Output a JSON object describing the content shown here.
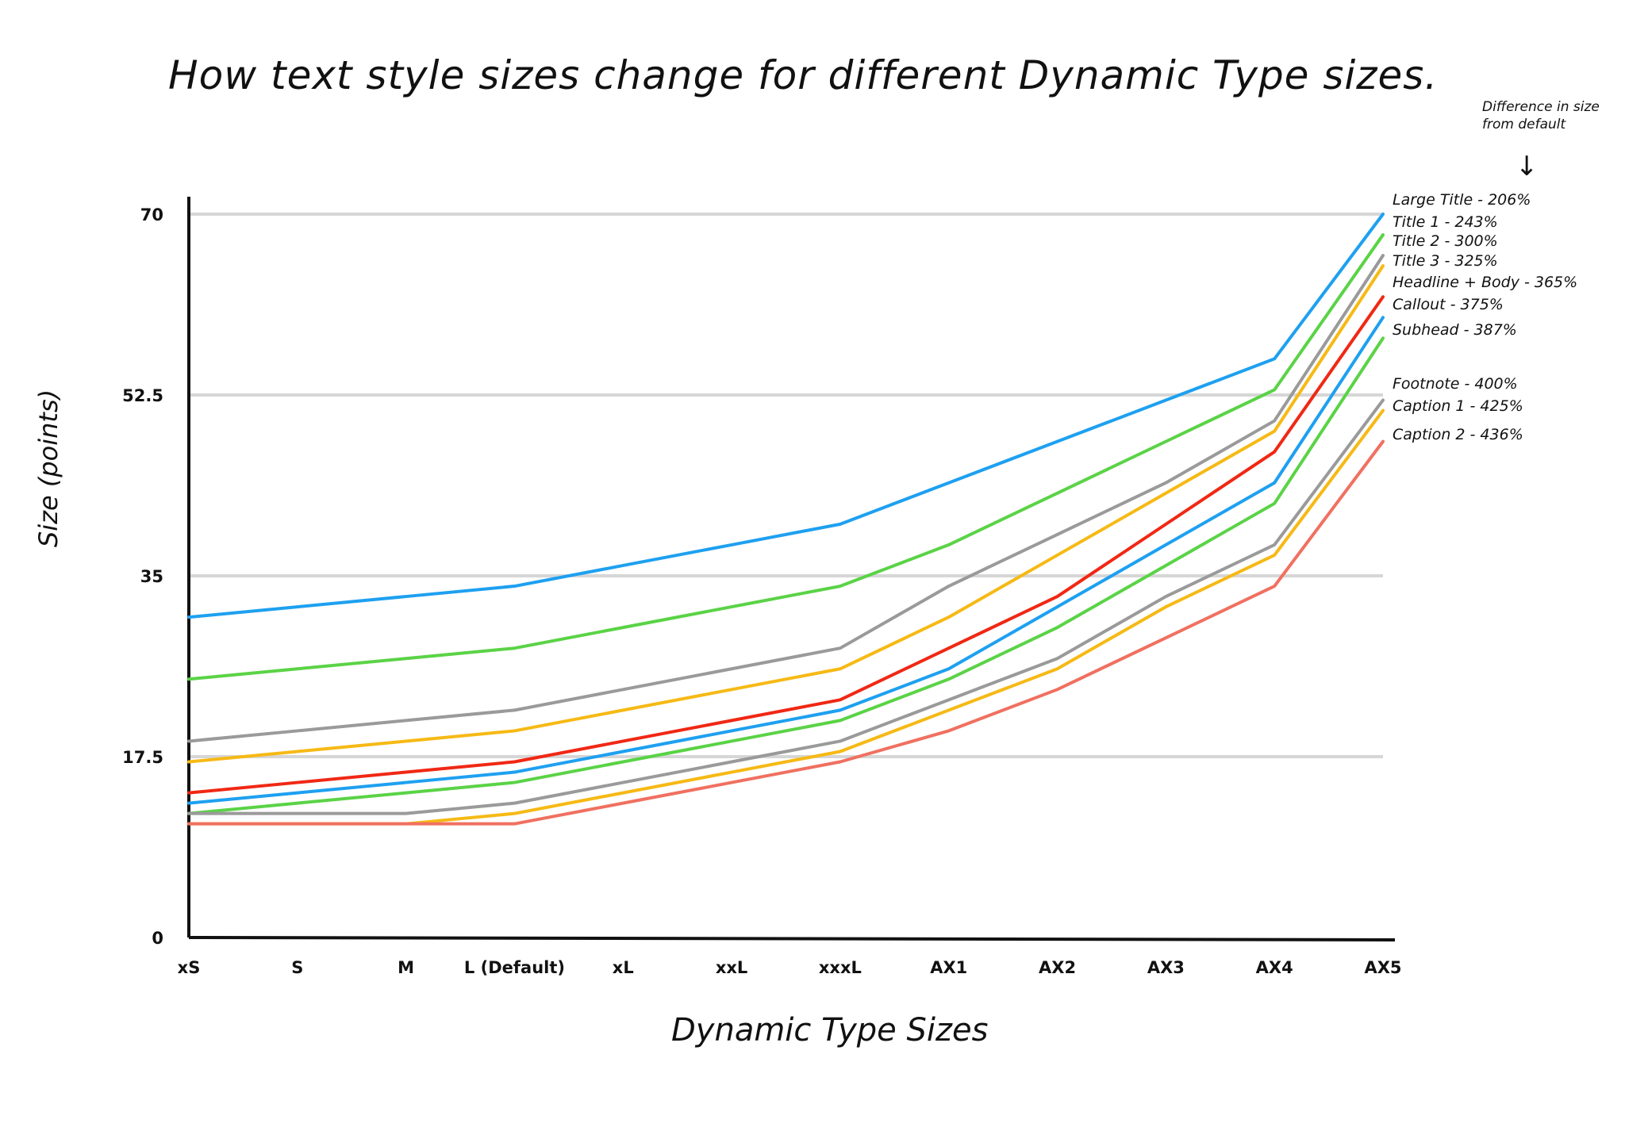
{
  "chart_data": {
    "type": "line",
    "title": "How text style sizes change for different Dynamic Type sizes.",
    "xlabel": "Dynamic Type Sizes",
    "ylabel": "Size (points)",
    "ylim": [
      0,
      70
    ],
    "yticks": [
      "0",
      "17.5",
      "35",
      "52.5",
      "70"
    ],
    "categories": [
      "xS",
      "S",
      "M",
      "L (Default)",
      "xL",
      "xxL",
      "xxxL",
      "AX1",
      "AX2",
      "AX3",
      "AX4",
      "AX5"
    ],
    "grid": true,
    "legend_note": "Difference in size from default",
    "legend_placement": "right",
    "series": [
      {
        "name": "Large Title",
        "label": "Large Title - 206%",
        "color": "#1ea0f0",
        "values": [
          31,
          32,
          33,
          34,
          36,
          38,
          40,
          44,
          48,
          52,
          56,
          70
        ]
      },
      {
        "name": "Title 1",
        "label": "Title 1 - 243%",
        "color": "#5ad346",
        "values": [
          25,
          26,
          27,
          28,
          30,
          32,
          34,
          38,
          43,
          48,
          53,
          68
        ]
      },
      {
        "name": "Title 2",
        "label": "Title 2 - 300%",
        "color": "#9a9a9a",
        "values": [
          19,
          20,
          21,
          22,
          24,
          26,
          28,
          34,
          39,
          44,
          50,
          66
        ]
      },
      {
        "name": "Title 3",
        "label": "Title 3 - 325%",
        "color": "#f6b915",
        "values": [
          17,
          18,
          19,
          20,
          22,
          24,
          26,
          31,
          37,
          43,
          49,
          65
        ]
      },
      {
        "name": "Headline + Body",
        "label": "Headline + Body - 365%",
        "color": "#f02814",
        "values": [
          14,
          15,
          16,
          17,
          19,
          21,
          23,
          28,
          33,
          40,
          47,
          62
        ]
      },
      {
        "name": "Callout",
        "label": "Callout - 375%",
        "color": "#1ea0f0",
        "values": [
          13,
          14,
          15,
          16,
          18,
          20,
          22,
          26,
          32,
          38,
          44,
          60
        ]
      },
      {
        "name": "Subhead",
        "label": "Subhead - 387%",
        "color": "#5ad346",
        "values": [
          12,
          13,
          14,
          15,
          17,
          19,
          21,
          25,
          30,
          36,
          42,
          58
        ]
      },
      {
        "name": "Footnote",
        "label": "Footnote - 400%",
        "color": "#9a9a9a",
        "values": [
          12,
          12,
          12,
          13,
          15,
          17,
          19,
          23,
          27,
          33,
          38,
          52
        ]
      },
      {
        "name": "Caption 1",
        "label": "Caption 1 - 425%",
        "color": "#f6b915",
        "values": [
          11,
          11,
          11,
          12,
          14,
          16,
          18,
          22,
          26,
          32,
          37,
          51
        ]
      },
      {
        "name": "Caption 2",
        "label": "Caption 2 - 436%",
        "color": "#f07060",
        "values": [
          11,
          11,
          11,
          11,
          13,
          15,
          17,
          20,
          24,
          29,
          34,
          48
        ]
      }
    ]
  }
}
